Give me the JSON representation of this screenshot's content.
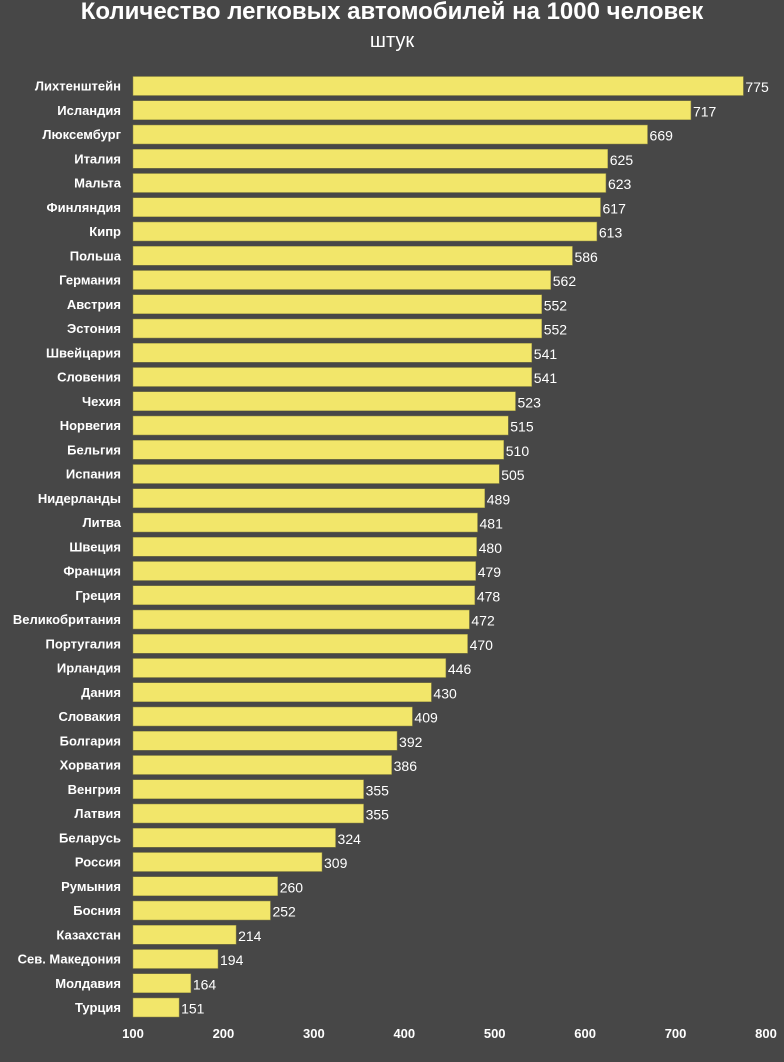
{
  "chart_data": {
    "type": "bar",
    "orientation": "horizontal",
    "title": "Количество легковых автомобилей на 1000 человек",
    "subtitle": "штук",
    "xlabel": "",
    "ylabel": "",
    "xlim": [
      100,
      800
    ],
    "xticks": [
      100,
      200,
      300,
      400,
      500,
      600,
      700,
      800
    ],
    "grid": false,
    "bar_color": "#f2e66a",
    "background": "#474747",
    "categories": [
      "Лихтенштейн",
      "Исландия",
      "Люксембург",
      "Италия",
      "Мальта",
      "Финляндия",
      "Кипр",
      "Польша",
      "Германия",
      "Австрия",
      "Эстония",
      "Швейцария",
      "Словения",
      "Чехия",
      "Норвегия",
      "Бельгия",
      "Испания",
      "Нидерланды",
      "Литва",
      "Швеция",
      "Франция",
      "Греция",
      "Великобритания",
      "Португалия",
      "Ирландия",
      "Дания",
      "Словакия",
      "Болгария",
      "Хорватия",
      "Венгрия",
      "Латвия",
      "Беларусь",
      "Россия",
      "Румыния",
      "Босния",
      "Казахстан",
      "Сев. Македония",
      "Молдавия",
      "Турция"
    ],
    "values": [
      775,
      717,
      669,
      625,
      623,
      617,
      613,
      586,
      562,
      552,
      552,
      541,
      541,
      523,
      515,
      510,
      505,
      489,
      481,
      480,
      479,
      478,
      472,
      470,
      446,
      430,
      409,
      392,
      386,
      355,
      355,
      324,
      309,
      260,
      252,
      214,
      194,
      164,
      151
    ]
  }
}
